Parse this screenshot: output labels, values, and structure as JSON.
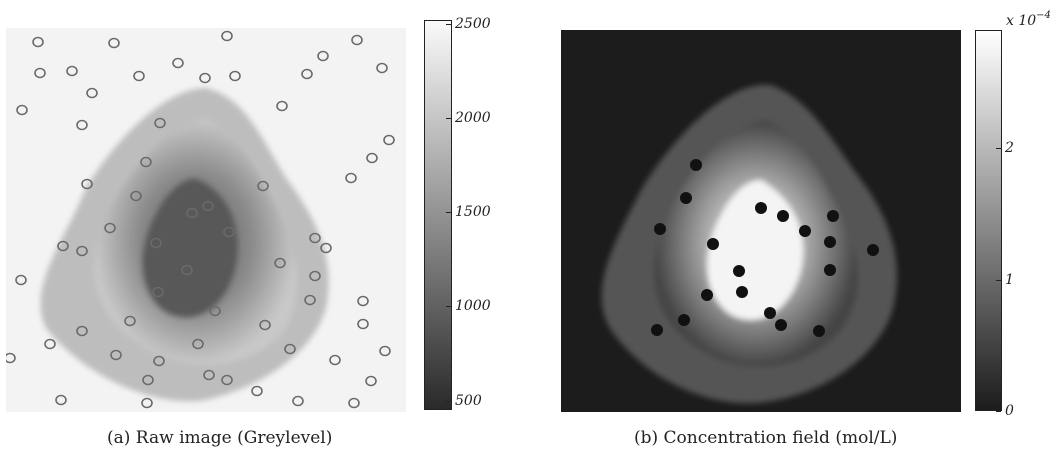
{
  "panel_a": {
    "caption": "(a) Raw image (Greylevel)",
    "colorbar": {
      "ticks": [
        "2500",
        "2000",
        "1500",
        "1000",
        "500"
      ],
      "range": [
        450,
        2520
      ],
      "colors": [
        "#2a2a2a",
        "#fafafa"
      ]
    }
  },
  "panel_b": {
    "caption": "(b) Concentration field (mol/L)",
    "colorbar": {
      "multiplier": "x 10",
      "multiplier_exp": "−4",
      "ticks": [
        "2",
        "1",
        "0"
      ],
      "range": [
        0,
        2.9
      ],
      "colors": [
        "#1c1c1c",
        "#ffffff"
      ]
    }
  }
}
